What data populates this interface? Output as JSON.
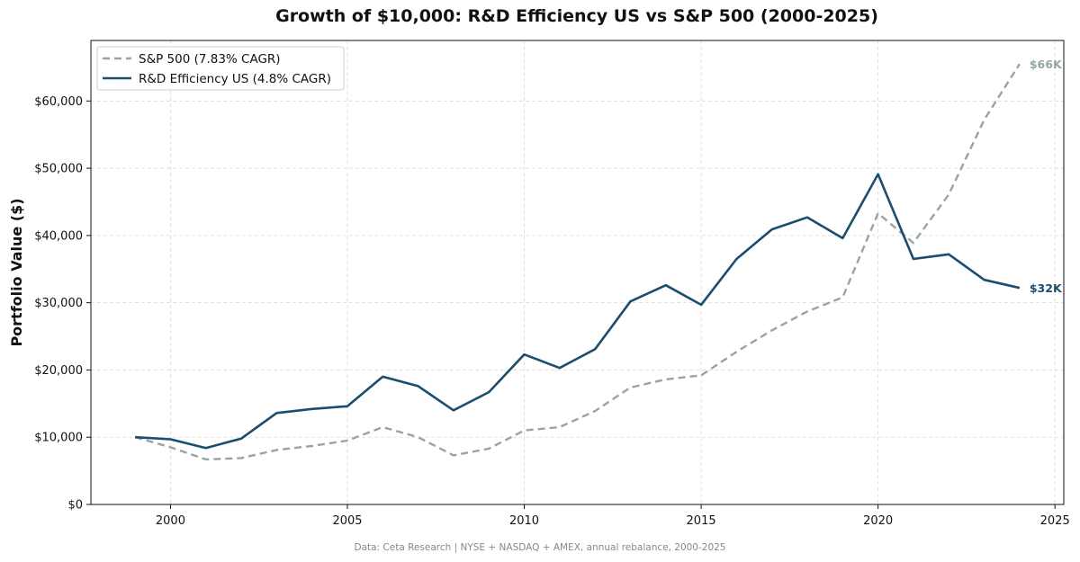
{
  "chart_data": {
    "type": "line",
    "title": "Growth of $10,000: R&D Efficiency US vs S&P 500 (2000-2025)",
    "xlabel": "",
    "ylabel": "Portfolio Value ($)",
    "x": [
      1999,
      2000,
      2001,
      2002,
      2003,
      2004,
      2005,
      2006,
      2007,
      2008,
      2009,
      2010,
      2011,
      2012,
      2013,
      2014,
      2015,
      2016,
      2017,
      2018,
      2019,
      2020,
      2021,
      2022,
      2023,
      2024
    ],
    "xlim": [
      1997.75,
      2025.25
    ],
    "ylim": [
      0,
      69000
    ],
    "x_ticks": [
      2000,
      2005,
      2010,
      2015,
      2020,
      2025
    ],
    "x_tick_labels": [
      "2000",
      "2005",
      "2010",
      "2015",
      "2020",
      "2025"
    ],
    "y_ticks": [
      0,
      10000,
      20000,
      30000,
      40000,
      50000,
      60000
    ],
    "y_tick_labels": [
      "$0",
      "$10,000",
      "$20,000",
      "$30,000",
      "$40,000",
      "$50,000",
      "$60,000"
    ],
    "grid": true,
    "legend_position": "top-left",
    "series": [
      {
        "name": "S&P 500 (7.83% CAGR)",
        "color": "#95a5a6",
        "style": "dashed",
        "values": [
          10000,
          8500,
          6700,
          6900,
          8100,
          8700,
          9500,
          11500,
          10000,
          7300,
          8300,
          11000,
          11500,
          13900,
          17400,
          18600,
          19200,
          22700,
          25900,
          28700,
          30800,
          43300,
          38900,
          46100,
          57200,
          65500
        ],
        "end_label": "$66K"
      },
      {
        "name": "R&D Efficiency US (4.8% CAGR)",
        "color": "#1a4d6e",
        "style": "solid",
        "values": [
          10000,
          9700,
          8400,
          9800,
          13600,
          14200,
          14600,
          19000,
          17600,
          14000,
          16700,
          22300,
          20300,
          23100,
          30200,
          32600,
          29700,
          36500,
          40900,
          42700,
          39600,
          49100,
          36500,
          37200,
          33400,
          32200
        ],
        "end_label": "$32K"
      }
    ]
  },
  "footer": "Data: Ceta Research | NYSE + NASDAQ + AMEX, annual rebalance, 2000-2025"
}
